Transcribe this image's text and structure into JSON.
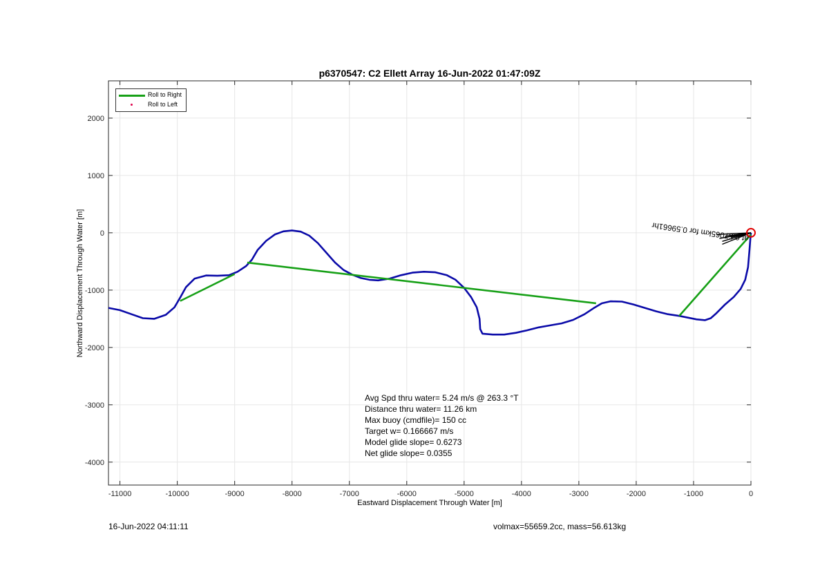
{
  "chart_data": {
    "type": "line",
    "title": "p6370547: C2 Ellett Array 16-Jun-2022 01:47:09Z",
    "xlabel": "Eastward Displacement Through Water [m]",
    "ylabel": "Northward Displacement Through Water [m]",
    "xlim": [
      -11200,
      0
    ],
    "ylim": [
      -4400,
      2650
    ],
    "grid": true,
    "xticks": [
      -11000,
      -10000,
      -9000,
      -8000,
      -7000,
      -6000,
      -5000,
      -4000,
      -3000,
      -2000,
      -1000,
      0
    ],
    "yticks": [
      -4000,
      -3000,
      -2000,
      -1000,
      0,
      1000,
      2000
    ],
    "legend": {
      "location": "top-left",
      "entries": [
        {
          "label": "Roll to Right",
          "color": "#16a016",
          "marker": "line"
        },
        {
          "label": "Roll to Left",
          "color": "#e0004a",
          "marker": "dot"
        }
      ]
    },
    "series": [
      {
        "color": "#0a0aa8",
        "points": [
          [
            -11200,
            -1310
          ],
          [
            -11000,
            -1350
          ],
          [
            -10800,
            -1420
          ],
          [
            -10600,
            -1490
          ],
          [
            -10400,
            -1500
          ],
          [
            -10200,
            -1430
          ],
          [
            -10050,
            -1300
          ],
          [
            -9950,
            -1130
          ],
          [
            -9850,
            -950
          ],
          [
            -9700,
            -800
          ],
          [
            -9500,
            -745
          ],
          [
            -9300,
            -750
          ],
          [
            -9100,
            -740
          ],
          [
            -8950,
            -680
          ],
          [
            -8800,
            -580
          ],
          [
            -8700,
            -470
          ],
          [
            -8600,
            -300
          ],
          [
            -8450,
            -140
          ],
          [
            -8300,
            -30
          ],
          [
            -8150,
            25
          ],
          [
            -8000,
            40
          ],
          [
            -7850,
            20
          ],
          [
            -7700,
            -50
          ],
          [
            -7550,
            -180
          ],
          [
            -7400,
            -350
          ],
          [
            -7250,
            -520
          ],
          [
            -7100,
            -650
          ],
          [
            -6950,
            -730
          ],
          [
            -6800,
            -790
          ],
          [
            -6650,
            -820
          ],
          [
            -6500,
            -830
          ],
          [
            -6300,
            -800
          ],
          [
            -6100,
            -740
          ],
          [
            -5900,
            -695
          ],
          [
            -5700,
            -680
          ],
          [
            -5500,
            -690
          ],
          [
            -5300,
            -740
          ],
          [
            -5150,
            -820
          ],
          [
            -5000,
            -960
          ],
          [
            -4880,
            -1120
          ],
          [
            -4780,
            -1300
          ],
          [
            -4730,
            -1500
          ],
          [
            -4720,
            -1680
          ],
          [
            -4680,
            -1760
          ],
          [
            -4500,
            -1775
          ],
          [
            -4300,
            -1775
          ],
          [
            -4100,
            -1745
          ],
          [
            -3900,
            -1700
          ],
          [
            -3700,
            -1650
          ],
          [
            -3500,
            -1615
          ],
          [
            -3300,
            -1580
          ],
          [
            -3100,
            -1520
          ],
          [
            -2900,
            -1420
          ],
          [
            -2750,
            -1320
          ],
          [
            -2600,
            -1230
          ],
          [
            -2450,
            -1195
          ],
          [
            -2250,
            -1200
          ],
          [
            -2050,
            -1250
          ],
          [
            -1850,
            -1310
          ],
          [
            -1650,
            -1370
          ],
          [
            -1450,
            -1420
          ],
          [
            -1250,
            -1450
          ],
          [
            -1100,
            -1480
          ],
          [
            -950,
            -1510
          ],
          [
            -800,
            -1525
          ],
          [
            -700,
            -1490
          ],
          [
            -600,
            -1400
          ],
          [
            -450,
            -1250
          ],
          [
            -300,
            -1120
          ],
          [
            -180,
            -980
          ],
          [
            -100,
            -820
          ],
          [
            -50,
            -600
          ],
          [
            -25,
            -300
          ],
          [
            -10,
            -100
          ],
          [
            0,
            0
          ]
        ]
      },
      {
        "color": "#16a016",
        "segments": [
          [
            [
              -9950,
              -1190
            ],
            [
              -9000,
              -720
            ]
          ],
          [
            [
              -8780,
              -520
            ],
            [
              -2700,
              -1230
            ]
          ],
          [
            [
              -1250,
              -1450
            ],
            [
              0,
              -30
            ]
          ]
        ]
      }
    ],
    "annotation_text": "at 0.57065km for 0.59661hr",
    "annotation_lines": [
      [
        [
          -550,
          -100
        ],
        [
          0,
          0
        ]
      ],
      [
        [
          -500,
          -200
        ],
        [
          0,
          0
        ]
      ],
      [
        [
          -600,
          -30
        ],
        [
          0,
          0
        ]
      ],
      [
        [
          -450,
          -60
        ],
        [
          0,
          0
        ]
      ],
      [
        [
          -350,
          -80
        ],
        [
          0,
          0
        ]
      ],
      [
        [
          -500,
          -150
        ],
        [
          0,
          0
        ]
      ],
      [
        [
          -300,
          -120
        ],
        [
          0,
          0
        ]
      ]
    ],
    "endpoint_marker": {
      "x": 0,
      "y": 0,
      "color": "#e00000"
    }
  },
  "stats": [
    "Avg Spd thru water=  5.24 m/s @ 263.3 °T",
    "Distance thru water= 11.26 km",
    "Max buoy (cmdfile)= 150 cc",
    "Target w= 0.166667 m/s",
    "Model glide slope= 0.6273",
    "Net glide slope= 0.0355"
  ],
  "footer_left": "16-Jun-2022 04:11:11",
  "footer_right": "volmax=55659.2cc, mass=56.613kg"
}
